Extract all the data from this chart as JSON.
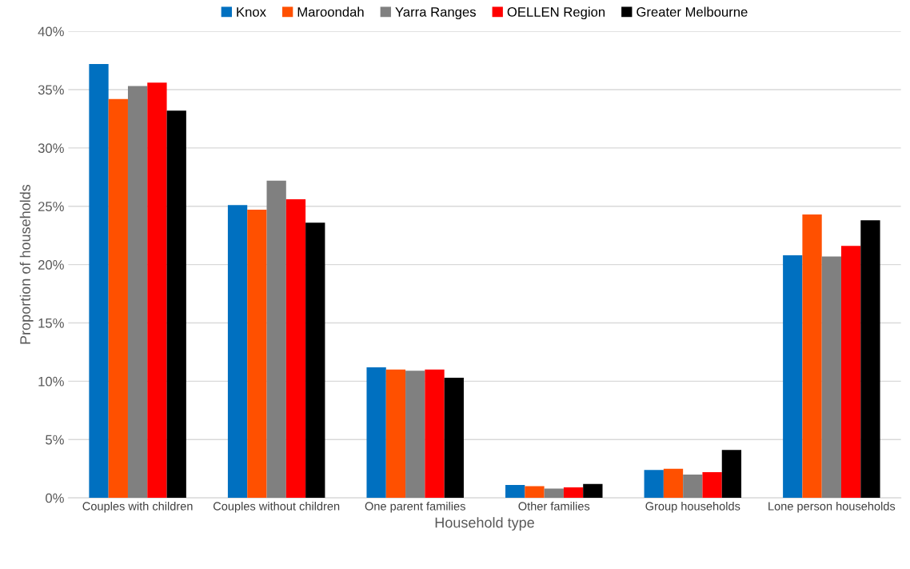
{
  "chart_data": {
    "type": "bar",
    "xlabel": "Household type",
    "ylabel": "Proportion of households",
    "categories": [
      "Couples with children",
      "Couples without children",
      "One parent families",
      "Other families",
      "Group households",
      "Lone person households"
    ],
    "series": [
      {
        "name": "Knox",
        "color": "#0070c0",
        "values": [
          37.2,
          25.1,
          11.2,
          1.1,
          2.4,
          20.8
        ]
      },
      {
        "name": "Maroondah",
        "color": "#ff5000",
        "values": [
          34.2,
          24.7,
          11.0,
          1.0,
          2.5,
          24.3
        ]
      },
      {
        "name": "Yarra Ranges",
        "color": "#808080",
        "values": [
          35.3,
          27.2,
          10.9,
          0.8,
          2.0,
          20.7
        ]
      },
      {
        "name": "OELLEN Region",
        "color": "#ff0000",
        "values": [
          35.6,
          25.6,
          11.0,
          0.9,
          2.2,
          21.6
        ]
      },
      {
        "name": "Greater Melbourne",
        "color": "#000000",
        "values": [
          33.2,
          23.6,
          10.3,
          1.2,
          4.1,
          23.8
        ]
      }
    ],
    "ylim": [
      0,
      40
    ],
    "yticks": [
      {
        "value": 0,
        "label": "0%"
      },
      {
        "value": 5,
        "label": "5%"
      },
      {
        "value": 10,
        "label": "10%"
      },
      {
        "value": 15,
        "label": "15%"
      },
      {
        "value": 20,
        "label": "20%"
      },
      {
        "value": 25,
        "label": "25%"
      },
      {
        "value": 30,
        "label": "30%"
      },
      {
        "value": 35,
        "label": "35%"
      },
      {
        "value": 40,
        "label": "40%"
      }
    ],
    "grid": "y",
    "legend": "top"
  }
}
